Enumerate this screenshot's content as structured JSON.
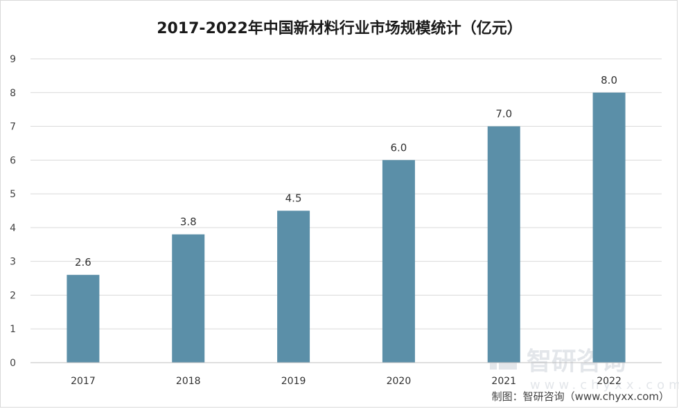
{
  "chart_data": {
    "type": "bar",
    "title": "2017-2022年中国新材料行业市场规模统计（亿元）",
    "categories": [
      "2017",
      "2018",
      "2019",
      "2020",
      "2021",
      "2022"
    ],
    "values": [
      2.6,
      3.8,
      4.5,
      6.0,
      7.0,
      8.0
    ],
    "value_labels": [
      "2.6",
      "3.8",
      "4.5",
      "6.0",
      "7.0",
      "8.0"
    ],
    "ylim": [
      0,
      9
    ],
    "yticks": [
      "0",
      "1",
      "2",
      "3",
      "4",
      "5",
      "6",
      "7",
      "8",
      "9"
    ],
    "grid": true,
    "bar_color": "#5b8fa8"
  },
  "watermark": {
    "text": "智研咨询",
    "url": "www.chyxx.com"
  },
  "source_label": "制图：智研咨询（www.chyxx.com）"
}
